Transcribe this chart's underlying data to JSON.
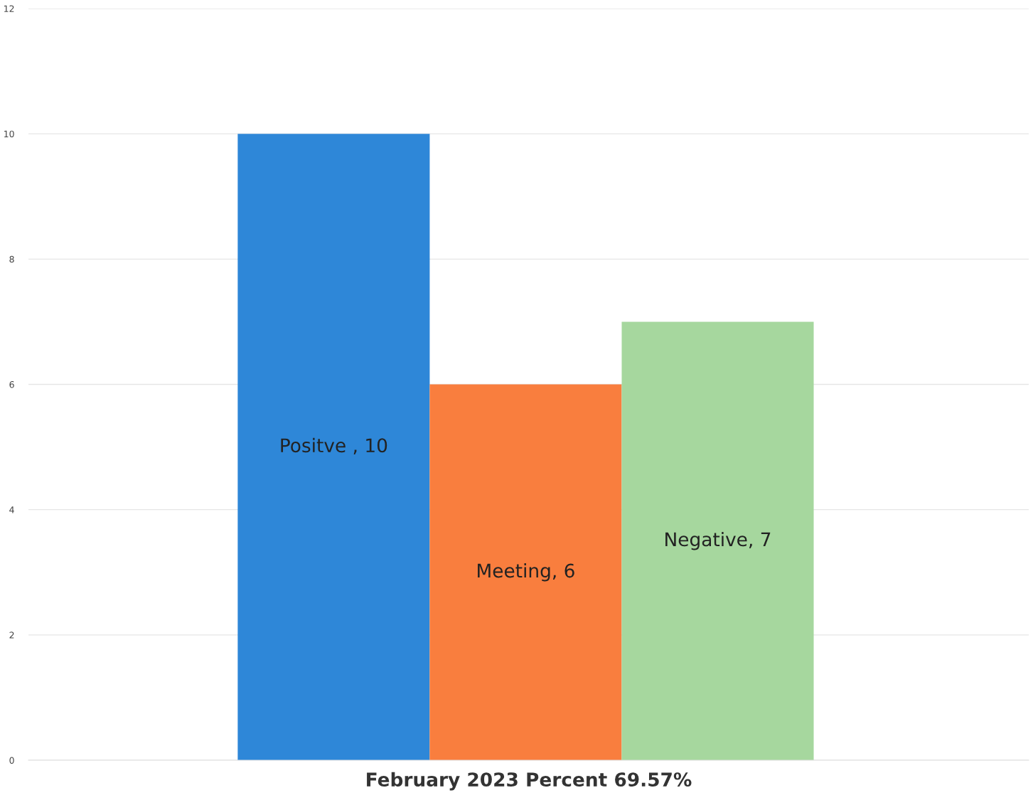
{
  "chart_data": {
    "type": "bar",
    "xlabel": "February 2023 Percent 69.57%",
    "categories": [
      null,
      null,
      null
    ],
    "values": [
      10,
      6,
      7
    ],
    "colors": [
      "#2e87d8",
      "#f97e3e",
      "#a6d79e"
    ],
    "value_labels": [
      "Positve , 10",
      "Meeting, 6",
      "Negative, 7"
    ],
    "ylim": [
      0,
      12
    ],
    "yticks": [
      0,
      2,
      4,
      6,
      8,
      10,
      12
    ],
    "grid": "y",
    "tick_labels": "y",
    "legend": false
  }
}
